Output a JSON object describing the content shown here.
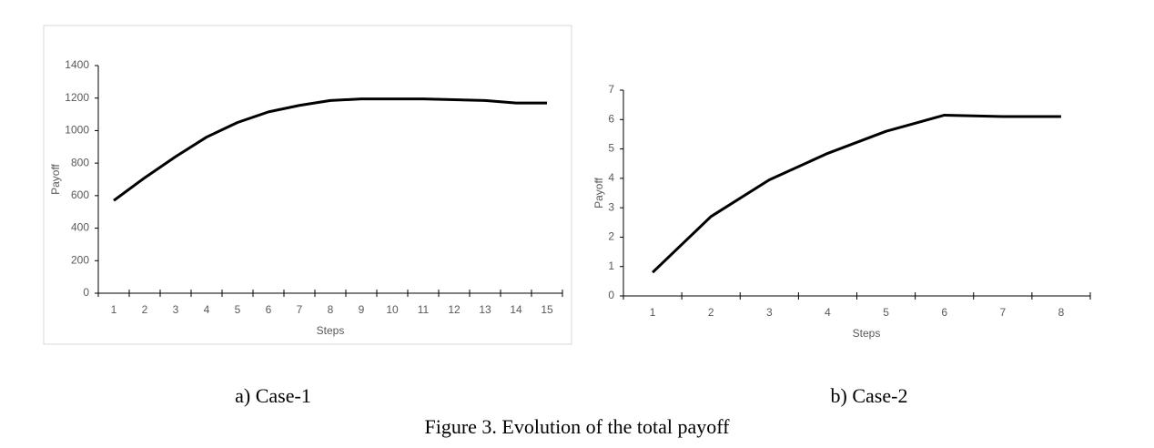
{
  "figure_caption": "Figure 3. Evolution of the total payoff",
  "chart_data": [
    {
      "type": "line",
      "caption": "a) Case-1",
      "x_label": "Steps",
      "y_label": "Payoff",
      "categories": [
        1,
        2,
        3,
        4,
        5,
        6,
        7,
        8,
        9,
        10,
        11,
        12,
        13,
        14,
        15
      ],
      "values": [
        570,
        710,
        840,
        960,
        1050,
        1115,
        1155,
        1185,
        1195,
        1195,
        1195,
        1190,
        1185,
        1170,
        1170
      ],
      "color": "#000000",
      "ylim": [
        0,
        1400
      ],
      "yticks": [
        0,
        200,
        400,
        600,
        800,
        1000,
        1200,
        1400
      ],
      "grid": false,
      "border": true
    },
    {
      "type": "line",
      "caption": "b) Case-2",
      "x_label": "Steps",
      "y_label": "Payoff",
      "categories": [
        1,
        2,
        3,
        4,
        5,
        6,
        7,
        8
      ],
      "values": [
        0.8,
        2.7,
        3.95,
        4.85,
        5.6,
        6.15,
        6.1,
        6.1
      ],
      "color": "#000000",
      "ylim": [
        0,
        7
      ],
      "yticks": [
        0,
        1,
        2,
        3,
        4,
        5,
        6,
        7
      ],
      "grid": false,
      "border": false
    }
  ]
}
